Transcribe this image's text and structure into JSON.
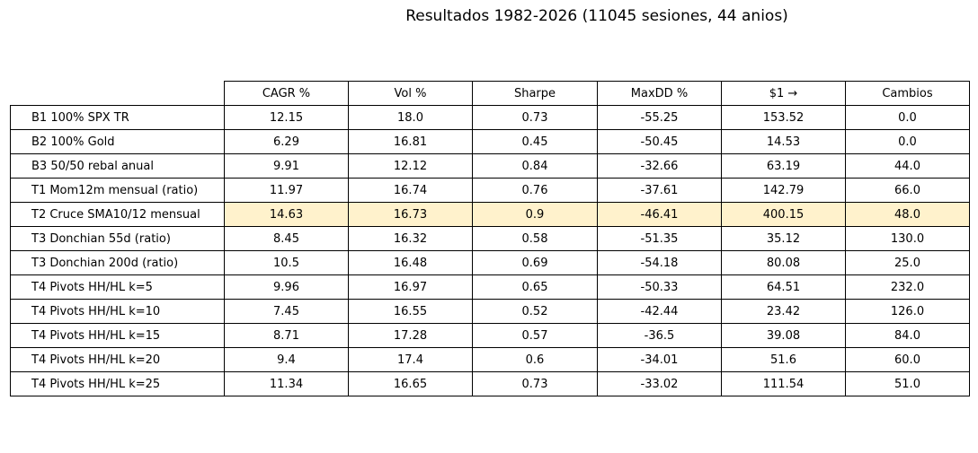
{
  "title": "Resultados 1982-2026 (11045 sesiones, 44 anios)",
  "highlight_color": "#fff2cc",
  "chart_data": {
    "type": "table",
    "title": "Resultados 1982-2026 (11045 sesiones, 44 anios)",
    "columns": [
      "CAGR %",
      "Vol %",
      "Sharpe",
      "MaxDD %",
      "$1 →",
      "Cambios"
    ],
    "highlight_row": 4,
    "rows": [
      {
        "label": "B1 100% SPX TR",
        "cells": [
          "12.15",
          "18.0",
          "0.73",
          "-55.25",
          "153.52",
          "0.0"
        ]
      },
      {
        "label": "B2 100% Gold",
        "cells": [
          "6.29",
          "16.81",
          "0.45",
          "-50.45",
          "14.53",
          "0.0"
        ]
      },
      {
        "label": "B3 50/50 rebal anual",
        "cells": [
          "9.91",
          "12.12",
          "0.84",
          "-32.66",
          "63.19",
          "44.0"
        ]
      },
      {
        "label": "T1 Mom12m mensual (ratio)",
        "cells": [
          "11.97",
          "16.74",
          "0.76",
          "-37.61",
          "142.79",
          "66.0"
        ]
      },
      {
        "label": "T2 Cruce SMA10/12 mensual",
        "cells": [
          "14.63",
          "16.73",
          "0.9",
          "-46.41",
          "400.15",
          "48.0"
        ]
      },
      {
        "label": "T3 Donchian 55d (ratio)",
        "cells": [
          "8.45",
          "16.32",
          "0.58",
          "-51.35",
          "35.12",
          "130.0"
        ]
      },
      {
        "label": "T3 Donchian 200d (ratio)",
        "cells": [
          "10.5",
          "16.48",
          "0.69",
          "-54.18",
          "80.08",
          "25.0"
        ]
      },
      {
        "label": "T4 Pivots HH/HL k=5",
        "cells": [
          "9.96",
          "16.97",
          "0.65",
          "-50.33",
          "64.51",
          "232.0"
        ]
      },
      {
        "label": "T4 Pivots HH/HL k=10",
        "cells": [
          "7.45",
          "16.55",
          "0.52",
          "-42.44",
          "23.42",
          "126.0"
        ]
      },
      {
        "label": "T4 Pivots HH/HL k=15",
        "cells": [
          "8.71",
          "17.28",
          "0.57",
          "-36.5",
          "39.08",
          "84.0"
        ]
      },
      {
        "label": "T4 Pivots HH/HL k=20",
        "cells": [
          "9.4",
          "17.4",
          "0.6",
          "-34.01",
          "51.6",
          "60.0"
        ]
      },
      {
        "label": "T4 Pivots HH/HL k=25",
        "cells": [
          "11.34",
          "16.65",
          "0.73",
          "-33.02",
          "111.54",
          "51.0"
        ]
      }
    ]
  }
}
